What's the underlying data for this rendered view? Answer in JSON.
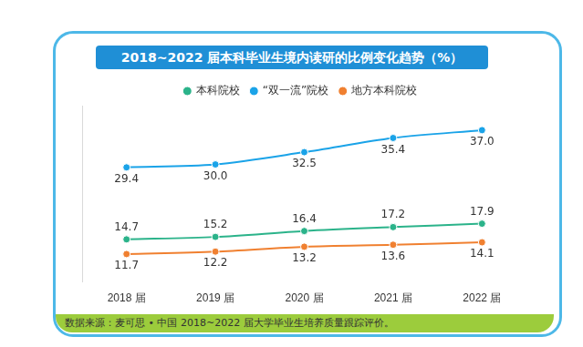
{
  "chart_data": {
    "type": "line",
    "title": "2018~2022 届本科毕业生境内读研的比例变化趋势（%）",
    "source": "数据来源：麦可思 • 中国 2018~2022 届大学毕业生培养质量跟踪评价。",
    "categories": [
      "2018 届",
      "2019 届",
      "2020 届",
      "2021 届",
      "2022 届"
    ],
    "series": [
      {
        "name": "本科院校",
        "color": "#2bb38a",
        "values": [
          14.7,
          15.2,
          16.4,
          17.2,
          17.9
        ],
        "value_labels": [
          "14.7",
          "15.2",
          "16.4",
          "17.2",
          "17.9"
        ]
      },
      {
        "name": "“双一流”院校",
        "color": "#1aa3e8",
        "values": [
          29.4,
          30.0,
          32.5,
          35.4,
          37.0
        ],
        "value_labels": [
          "29.4",
          "30.0",
          "32.5",
          "35.4",
          "37.0"
        ]
      },
      {
        "name": "地方本科院校",
        "color": "#f08030",
        "values": [
          11.7,
          12.2,
          13.2,
          13.6,
          14.1
        ],
        "value_labels": [
          "11.7",
          "12.2",
          "13.2",
          "13.6",
          "14.1"
        ]
      }
    ],
    "ylim": [
      6,
      42
    ],
    "yticks": [],
    "grid": false,
    "legend": "top",
    "data_labels": true,
    "tick_labels": "x",
    "marker": "circle"
  }
}
